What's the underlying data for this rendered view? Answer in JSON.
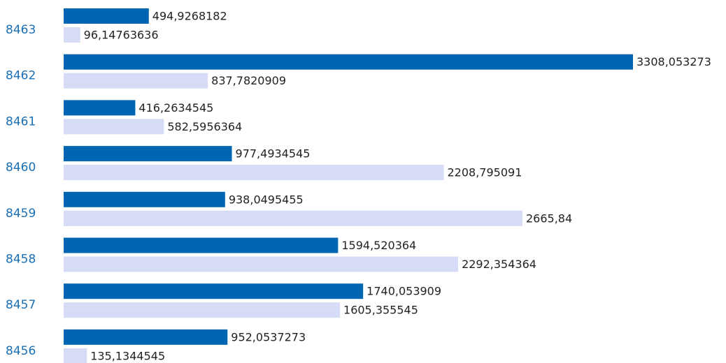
{
  "chart_data": {
    "type": "barh",
    "categories": [
      "8463",
      "8462",
      "8461",
      "8460",
      "8459",
      "8458",
      "8457",
      "8456"
    ],
    "series": [
      {
        "color": "#0066b3",
        "values": [
          494.9268182,
          3308.053273,
          416.2634545,
          977.4934545,
          938.0495455,
          1594.520364,
          1740.053909,
          952.0537273
        ],
        "value_labels": [
          "494,9268182",
          "3308,053273",
          "416,2634545",
          "977,4934545",
          "938,0495455",
          "1594,520364",
          "1740,053909",
          "952,0537273"
        ]
      },
      {
        "color": "#d6dcf5",
        "values": [
          96.14763636,
          837.7820909,
          582.5956364,
          2208.795091,
          2665.84,
          2292.354364,
          1605.355545,
          135.1344545
        ],
        "value_labels": [
          "96,14763636",
          "837,7820909",
          "582,5956364",
          "2208,795091",
          "2665,84",
          "2292,354364",
          "1605,355545",
          "135,1344545"
        ]
      }
    ]
  }
}
